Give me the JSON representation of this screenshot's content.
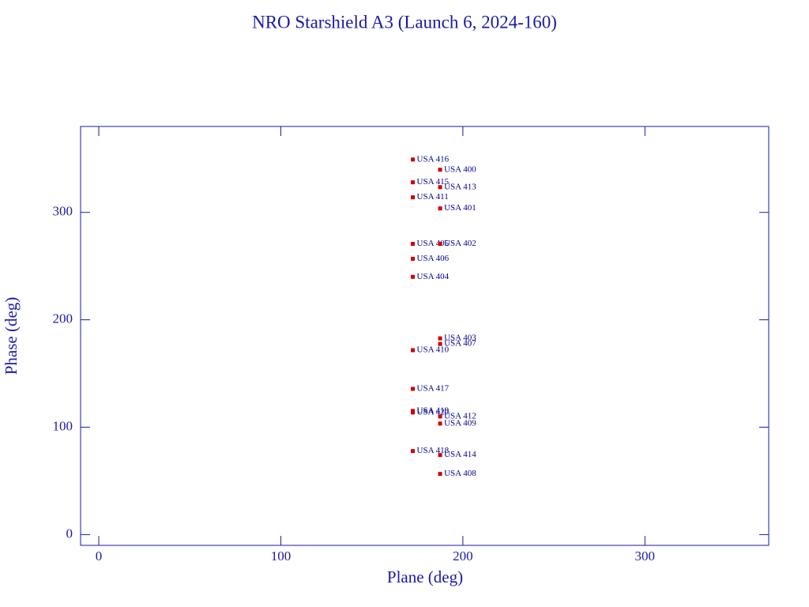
{
  "chart_data": {
    "type": "scatter",
    "title": "NRO Starshield A3 (Launch 6, 2024-160)",
    "x_label": "Plane (deg)",
    "y_label": "Phase (deg)",
    "x": [
      172.5,
      172.5,
      172.5,
      172.5,
      172.5,
      172.5,
      172.5,
      172.5,
      172.5,
      172.5,
      172.5,
      187.5,
      187.5,
      187.5,
      187.5,
      187.5,
      187.5,
      187.5,
      187.5,
      187.5,
      187.5
    ],
    "values": [
      349.2,
      328,
      314,
      270.7,
      256.8,
      240,
      171.7,
      135.7,
      115.2,
      113.7,
      77.8,
      339.7,
      323.5,
      303.7,
      270.7,
      182.7,
      177.5,
      110,
      103.4,
      74.1,
      56.5
    ],
    "labels": [
      "USA 416",
      "USA 415",
      "USA 411",
      "USA 405",
      "USA 406",
      "USA 404",
      "USA 410",
      "USA 417",
      "USA 419",
      "USA 420",
      "USA 418",
      "USA 400",
      "USA 413",
      "USA 401",
      "USA 402",
      "USA 403",
      "USA 407",
      "USA 412",
      "USA 409",
      "USA 414",
      "USA 408"
    ],
    "color": "#d00000",
    "xlim": [
      -10,
      368
    ],
    "ylim": [
      -10,
      380
    ],
    "xticks": [
      0,
      100,
      200,
      300
    ],
    "yticks": [
      0,
      100,
      200,
      300
    ]
  }
}
